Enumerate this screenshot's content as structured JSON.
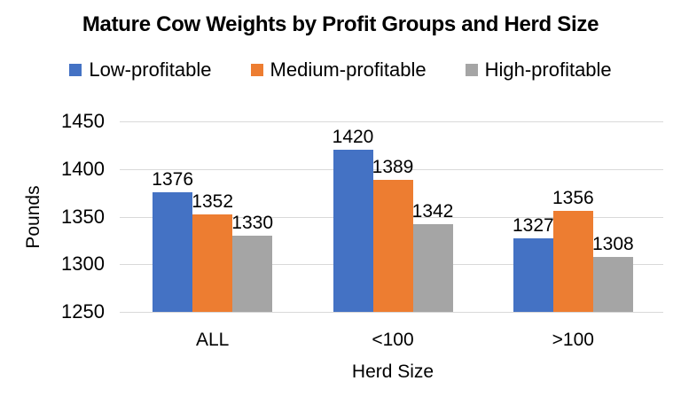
{
  "chart_data": {
    "type": "bar",
    "title": "Mature Cow Weights by Profit Groups and Herd Size",
    "xlabel": "Herd Size",
    "ylabel": "Pounds",
    "categories": [
      "ALL",
      "<100",
      ">100"
    ],
    "series": [
      {
        "name": "Low-profitable",
        "color": "#4472C4",
        "values": [
          1376,
          1420,
          1327
        ]
      },
      {
        "name": "Medium-profitable",
        "color": "#ED7D31",
        "values": [
          1352,
          1389,
          1356
        ]
      },
      {
        "name": "High-profitable",
        "color": "#A5A5A5",
        "values": [
          1330,
          1342,
          1308
        ]
      }
    ],
    "ylim": [
      1250,
      1450
    ],
    "yticks": [
      1250,
      1300,
      1350,
      1400,
      1450
    ],
    "grid": true,
    "gridline_color": "#D9D9D9",
    "text_color": "#000000",
    "legend_position": "top",
    "data_labels": true
  }
}
